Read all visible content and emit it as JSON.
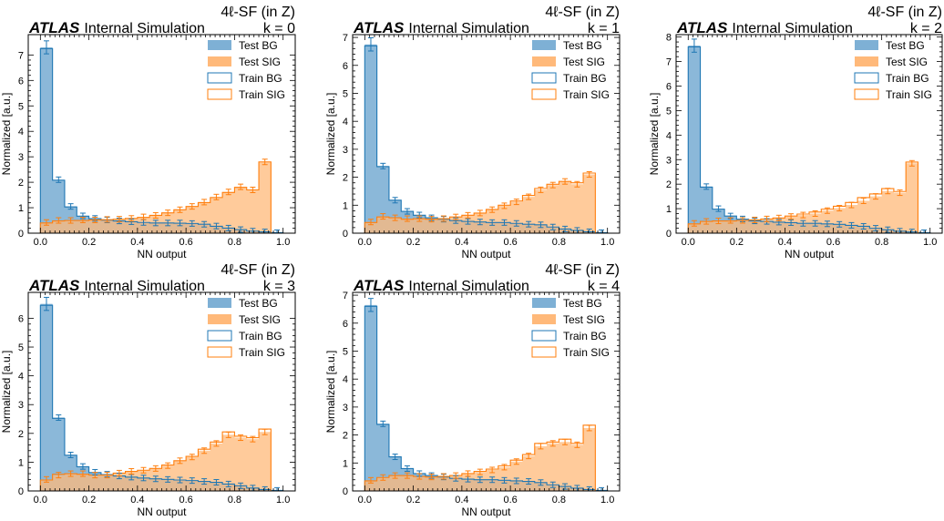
{
  "figure": {
    "experiment": "ATLAS",
    "status": "Internal Simulation",
    "region": "4ℓ-SF (in Z)"
  },
  "colors": {
    "bg": "#1f77b4",
    "sig": "#ff7f0e",
    "bg_fill": "#7eb0d5",
    "sig_fill": "#ffb97a"
  },
  "chart_data": [
    {
      "type": "histogram",
      "fold_label": "k = 0",
      "xlabel": "NN output",
      "ylabel": "Normalized [a.u.]",
      "xlim": [
        -0.05,
        1.05
      ],
      "ylim": [
        0,
        7.8
      ],
      "x_ticks": [
        "0.0",
        "0.2",
        "0.4",
        "0.6",
        "0.8",
        "1.0"
      ],
      "y_ticks": [
        "0",
        "1",
        "2",
        "3",
        "4",
        "5",
        "6",
        "7"
      ],
      "legend": [
        "Test BG",
        "Test SIG",
        "Train BG",
        "Train SIG"
      ],
      "legend_position": "top-right",
      "bin_edges": [
        0,
        0.05,
        0.1,
        0.15,
        0.2,
        0.25,
        0.3,
        0.35,
        0.4,
        0.45,
        0.5,
        0.55,
        0.6,
        0.65,
        0.7,
        0.75,
        0.8,
        0.85,
        0.9,
        0.95,
        1.0
      ],
      "series": [
        {
          "name": "Test BG",
          "values": [
            7.3,
            2.1,
            1.05,
            0.68,
            0.58,
            0.52,
            0.48,
            0.45,
            0.42,
            0.4,
            0.4,
            0.4,
            0.38,
            0.35,
            0.28,
            0.2,
            0.14,
            0.08,
            0.05,
            0.02
          ]
        },
        {
          "name": "Train BG",
          "values": [
            7.25,
            2.08,
            1.03,
            0.67,
            0.57,
            0.51,
            0.48,
            0.45,
            0.42,
            0.4,
            0.4,
            0.39,
            0.38,
            0.35,
            0.27,
            0.2,
            0.14,
            0.08,
            0.05,
            0.02
          ]
        },
        {
          "name": "Test SIG",
          "values": [
            0.42,
            0.5,
            0.5,
            0.52,
            0.52,
            0.54,
            0.55,
            0.58,
            0.64,
            0.7,
            0.8,
            0.92,
            1.05,
            1.22,
            1.42,
            1.62,
            1.82,
            1.7,
            2.8,
            0
          ]
        },
        {
          "name": "Train SIG",
          "values": [
            0.4,
            0.48,
            0.5,
            0.5,
            0.52,
            0.53,
            0.55,
            0.58,
            0.62,
            0.7,
            0.8,
            0.92,
            1.05,
            1.2,
            1.4,
            1.6,
            1.8,
            1.7,
            2.8,
            0
          ]
        }
      ]
    },
    {
      "type": "histogram",
      "fold_label": "k = 1",
      "xlabel": "NN output",
      "ylabel": "Normalized [a.u.]",
      "xlim": [
        -0.05,
        1.05
      ],
      "ylim": [
        0,
        7.1
      ],
      "x_ticks": [
        "0.0",
        "0.2",
        "0.4",
        "0.6",
        "0.8",
        "1.0"
      ],
      "y_ticks": [
        "0",
        "1",
        "2",
        "3",
        "4",
        "5",
        "6",
        "7"
      ],
      "legend": [
        "Test BG",
        "Test SIG",
        "Train BG",
        "Train SIG"
      ],
      "legend_position": "top-right",
      "bin_edges": [
        0,
        0.05,
        0.1,
        0.15,
        0.2,
        0.25,
        0.3,
        0.35,
        0.4,
        0.45,
        0.5,
        0.55,
        0.6,
        0.65,
        0.7,
        0.75,
        0.8,
        0.85,
        0.9,
        0.95,
        1.0
      ],
      "series": [
        {
          "name": "Test BG",
          "values": [
            6.75,
            2.4,
            1.18,
            0.78,
            0.65,
            0.55,
            0.5,
            0.45,
            0.42,
            0.4,
            0.38,
            0.38,
            0.35,
            0.32,
            0.3,
            0.22,
            0.15,
            0.1,
            0.05,
            0.02
          ]
        },
        {
          "name": "Train BG",
          "values": [
            6.7,
            2.38,
            1.18,
            0.78,
            0.64,
            0.55,
            0.5,
            0.45,
            0.42,
            0.4,
            0.38,
            0.38,
            0.35,
            0.32,
            0.3,
            0.22,
            0.15,
            0.1,
            0.05,
            0.02
          ]
        },
        {
          "name": "Test SIG",
          "values": [
            0.4,
            0.6,
            0.55,
            0.52,
            0.52,
            0.5,
            0.52,
            0.58,
            0.64,
            0.72,
            0.84,
            0.98,
            1.12,
            1.3,
            1.55,
            1.72,
            1.85,
            1.75,
            2.1,
            0
          ]
        },
        {
          "name": "Train SIG",
          "values": [
            0.38,
            0.58,
            0.55,
            0.5,
            0.52,
            0.5,
            0.52,
            0.58,
            0.64,
            0.72,
            0.85,
            1.0,
            1.15,
            1.35,
            1.6,
            1.75,
            1.85,
            1.8,
            2.15,
            0
          ]
        }
      ]
    },
    {
      "type": "histogram",
      "fold_label": "k = 2",
      "xlabel": "NN output",
      "ylabel": "Normalized [a.u.]",
      "xlim": [
        -0.05,
        1.05
      ],
      "ylim": [
        0,
        8.1
      ],
      "x_ticks": [
        "0.0",
        "0.2",
        "0.4",
        "0.6",
        "0.8",
        "1.0"
      ],
      "y_ticks": [
        "0",
        "1",
        "2",
        "3",
        "4",
        "5",
        "6",
        "7",
        "8"
      ],
      "legend": [
        "Test BG",
        "Test SIG",
        "Train BG",
        "Train SIG"
      ],
      "legend_position": "top-right",
      "bin_edges": [
        0,
        0.05,
        0.1,
        0.15,
        0.2,
        0.25,
        0.3,
        0.35,
        0.4,
        0.45,
        0.5,
        0.55,
        0.6,
        0.65,
        0.7,
        0.75,
        0.8,
        0.85,
        0.9,
        0.95,
        1.0
      ],
      "series": [
        {
          "name": "Test BG",
          "values": [
            7.65,
            1.9,
            1.0,
            0.7,
            0.58,
            0.5,
            0.48,
            0.45,
            0.43,
            0.4,
            0.4,
            0.38,
            0.36,
            0.32,
            0.28,
            0.2,
            0.14,
            0.08,
            0.05,
            0.02
          ]
        },
        {
          "name": "Train BG",
          "values": [
            7.6,
            1.88,
            0.98,
            0.7,
            0.57,
            0.5,
            0.48,
            0.45,
            0.43,
            0.4,
            0.4,
            0.38,
            0.36,
            0.32,
            0.28,
            0.2,
            0.14,
            0.08,
            0.05,
            0.02
          ]
        },
        {
          "name": "Test SIG",
          "values": [
            0.4,
            0.48,
            0.5,
            0.52,
            0.52,
            0.54,
            0.58,
            0.62,
            0.68,
            0.74,
            0.8,
            0.92,
            1.02,
            1.15,
            1.32,
            1.5,
            1.72,
            1.65,
            2.85,
            0
          ]
        },
        {
          "name": "Train SIG",
          "values": [
            0.38,
            0.48,
            0.5,
            0.5,
            0.52,
            0.54,
            0.58,
            0.62,
            0.7,
            0.78,
            0.86,
            0.98,
            1.1,
            1.25,
            1.45,
            1.6,
            1.82,
            1.7,
            2.9,
            0
          ]
        }
      ]
    },
    {
      "type": "histogram",
      "fold_label": "k = 3",
      "xlabel": "NN output",
      "ylabel": "Normalized [a.u.]",
      "xlim": [
        -0.05,
        1.05
      ],
      "ylim": [
        0,
        6.9
      ],
      "x_ticks": [
        "0.0",
        "0.2",
        "0.4",
        "0.6",
        "0.8",
        "1.0"
      ],
      "y_ticks": [
        "0",
        "1",
        "2",
        "3",
        "4",
        "5",
        "6"
      ],
      "legend": [
        "Test BG",
        "Test SIG",
        "Train BG",
        "Train SIG"
      ],
      "legend_position": "top-right",
      "bin_edges": [
        0,
        0.05,
        0.1,
        0.15,
        0.2,
        0.25,
        0.3,
        0.35,
        0.4,
        0.45,
        0.5,
        0.55,
        0.6,
        0.65,
        0.7,
        0.75,
        0.8,
        0.85,
        0.9,
        0.95,
        1.0
      ],
      "series": [
        {
          "name": "Test BG",
          "values": [
            6.5,
            2.55,
            1.25,
            0.85,
            0.65,
            0.58,
            0.52,
            0.48,
            0.45,
            0.42,
            0.4,
            0.38,
            0.36,
            0.33,
            0.3,
            0.24,
            0.18,
            0.1,
            0.05,
            0.02
          ]
        },
        {
          "name": "Train BG",
          "values": [
            6.45,
            2.52,
            1.24,
            0.84,
            0.64,
            0.57,
            0.52,
            0.48,
            0.45,
            0.42,
            0.4,
            0.38,
            0.36,
            0.33,
            0.3,
            0.24,
            0.18,
            0.1,
            0.05,
            0.02
          ]
        },
        {
          "name": "Test SIG",
          "values": [
            0.4,
            0.55,
            0.6,
            0.6,
            0.55,
            0.55,
            0.62,
            0.68,
            0.72,
            0.78,
            0.88,
            1.05,
            1.18,
            1.4,
            1.65,
            1.95,
            1.85,
            1.8,
            2.05,
            0
          ]
        },
        {
          "name": "Train SIG",
          "values": [
            0.38,
            0.58,
            0.6,
            0.58,
            0.55,
            0.55,
            0.62,
            0.68,
            0.72,
            0.78,
            0.9,
            1.05,
            1.2,
            1.45,
            1.7,
            2.05,
            1.9,
            1.85,
            2.15,
            0
          ]
        }
      ]
    },
    {
      "type": "histogram",
      "fold_label": "k = 4",
      "xlabel": "NN output",
      "ylabel": "Normalized [a.u.]",
      "xlim": [
        -0.05,
        1.05
      ],
      "ylim": [
        0,
        7.1
      ],
      "x_ticks": [
        "0.0",
        "0.2",
        "0.4",
        "0.6",
        "0.8",
        "1.0"
      ],
      "y_ticks": [
        "0",
        "1",
        "2",
        "3",
        "4",
        "5",
        "6",
        "7"
      ],
      "legend": [
        "Test BG",
        "Test SIG",
        "Train BG",
        "Train SIG"
      ],
      "legend_position": "top-right",
      "bin_edges": [
        0,
        0.05,
        0.1,
        0.15,
        0.2,
        0.25,
        0.3,
        0.35,
        0.4,
        0.45,
        0.5,
        0.55,
        0.6,
        0.65,
        0.7,
        0.75,
        0.8,
        0.85,
        0.9,
        0.95,
        1.0
      ],
      "series": [
        {
          "name": "Test BG",
          "values": [
            6.65,
            2.4,
            1.22,
            0.8,
            0.62,
            0.55,
            0.5,
            0.45,
            0.42,
            0.4,
            0.4,
            0.38,
            0.36,
            0.34,
            0.3,
            0.22,
            0.16,
            0.1,
            0.05,
            0.02
          ]
        },
        {
          "name": "Train BG",
          "values": [
            6.6,
            2.38,
            1.22,
            0.8,
            0.62,
            0.55,
            0.5,
            0.45,
            0.42,
            0.4,
            0.4,
            0.38,
            0.36,
            0.34,
            0.3,
            0.22,
            0.16,
            0.1,
            0.05,
            0.02
          ]
        },
        {
          "name": "Test SIG",
          "values": [
            0.38,
            0.48,
            0.55,
            0.55,
            0.52,
            0.5,
            0.52,
            0.55,
            0.62,
            0.68,
            0.75,
            0.85,
            1.05,
            1.25,
            1.6,
            1.7,
            1.75,
            1.65,
            2.25,
            0
          ]
        },
        {
          "name": "Train SIG",
          "values": [
            0.36,
            0.48,
            0.55,
            0.55,
            0.52,
            0.5,
            0.52,
            0.55,
            0.62,
            0.7,
            0.78,
            0.9,
            1.1,
            1.3,
            1.7,
            1.75,
            1.85,
            1.7,
            2.35,
            0
          ]
        }
      ]
    }
  ]
}
